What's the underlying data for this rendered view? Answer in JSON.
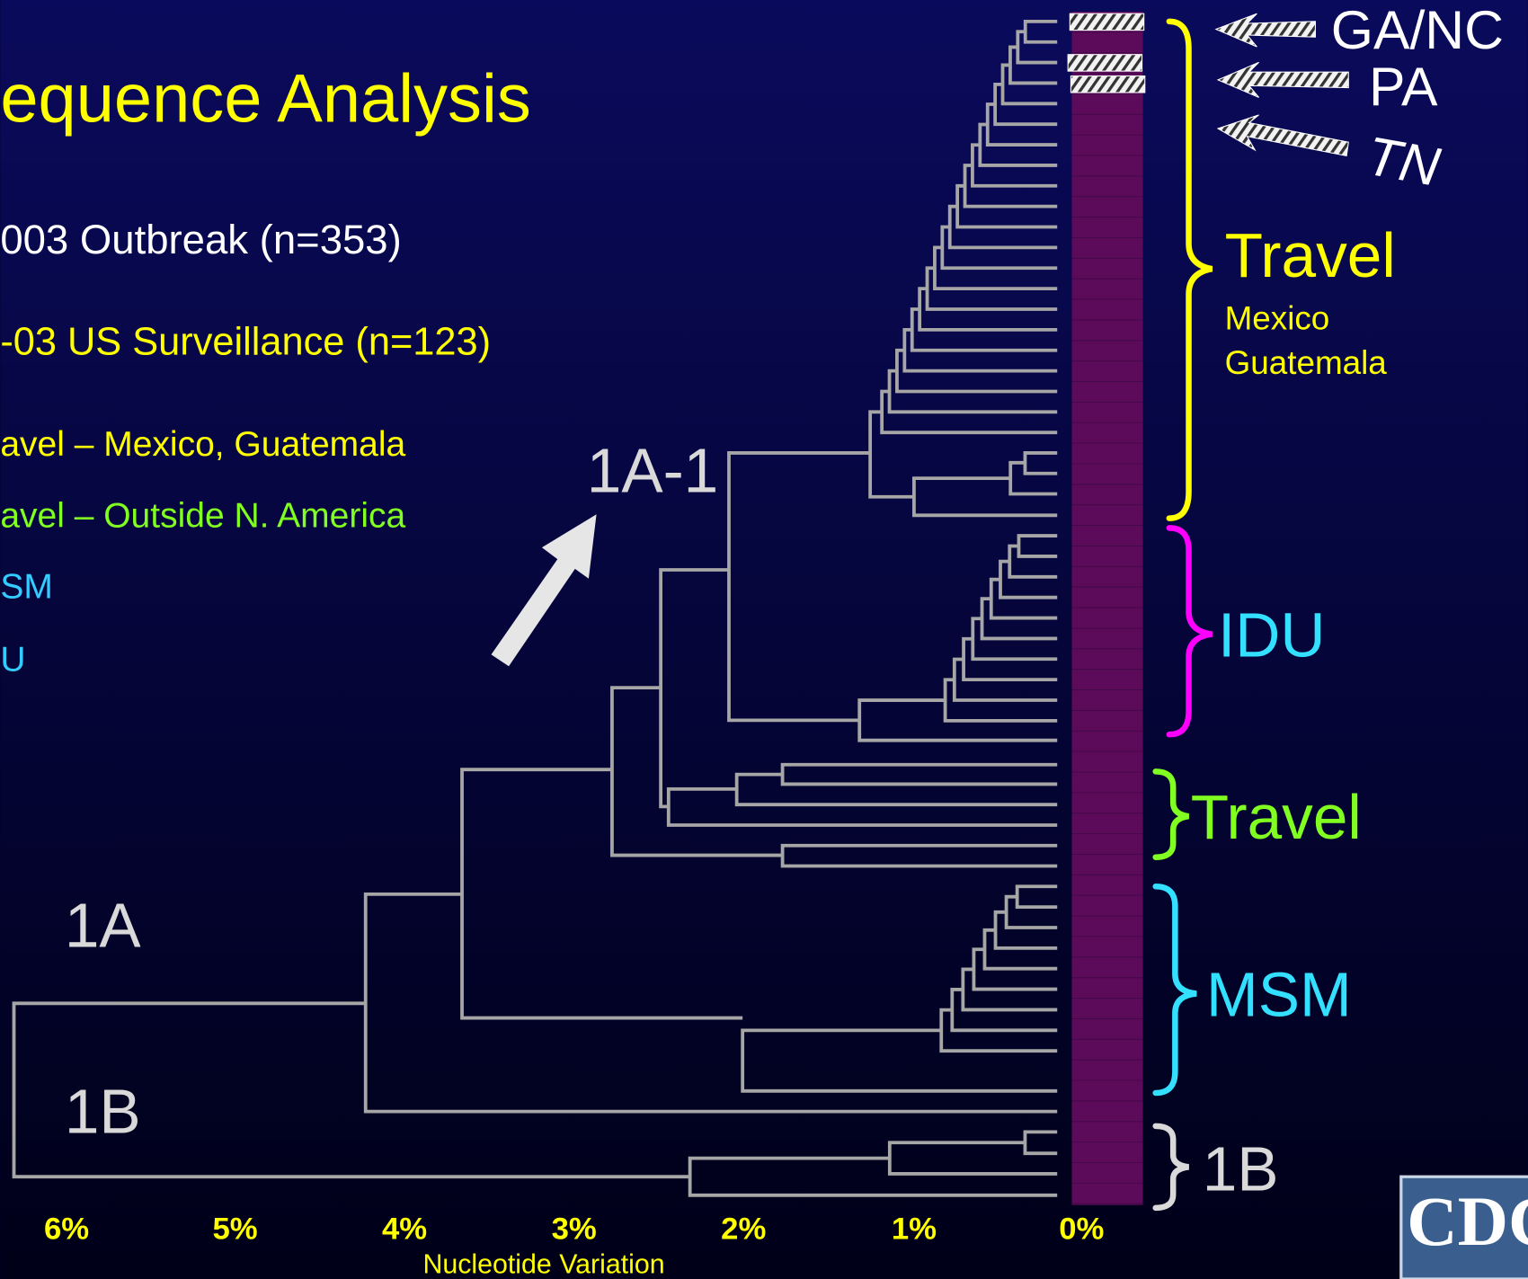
{
  "slide": {
    "title": "equence Analysis",
    "legend": [
      {
        "text": "003 Outbreak (n=353)"
      },
      {
        "text": "-03 US Surveillance (n=123)"
      },
      {
        "text": "avel – Mexico, Guatemala"
      },
      {
        "text": "avel – Outside N. America"
      },
      {
        "text": "SM"
      },
      {
        "text": "U"
      }
    ],
    "tree_labels": {
      "subclade": "1A-1",
      "clade_a": "1A",
      "clade_b": "1B"
    },
    "axis": {
      "ticks": [
        "6%",
        "5%",
        "4%",
        "3%",
        "2%",
        "1%",
        "0%"
      ],
      "label": "Nucleotide Variation"
    },
    "states": [
      "GA/NC",
      "PA",
      "TN"
    ],
    "groups": {
      "travel_main": {
        "label": "Travel",
        "places": [
          "Mexico",
          "Guatemala"
        ]
      },
      "idu": "IDU",
      "travel_other": "Travel",
      "msm": "MSM",
      "genotype_1b": "1B"
    },
    "logo": "CDC"
  }
}
